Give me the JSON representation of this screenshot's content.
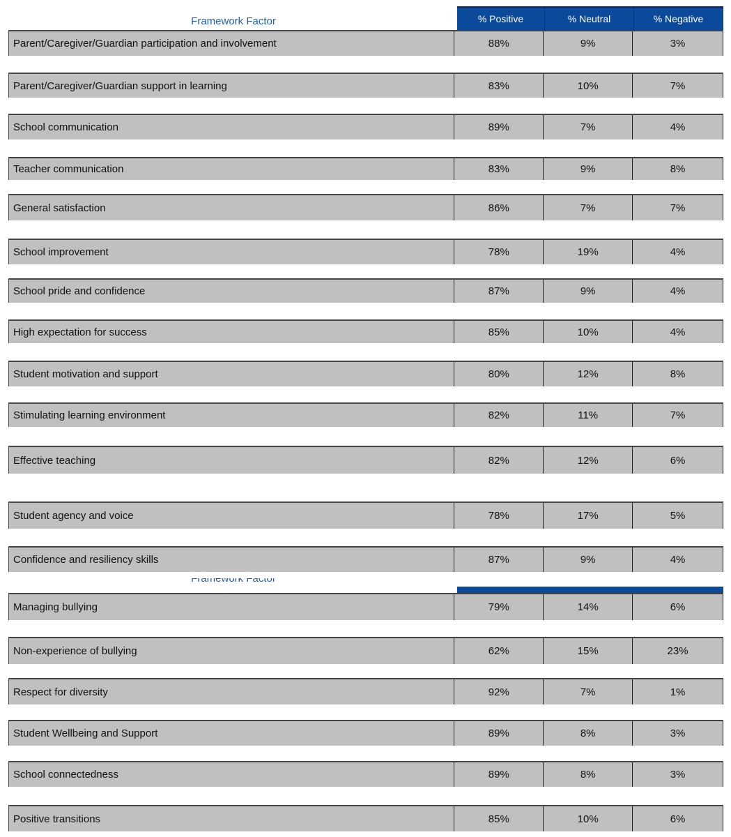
{
  "header": {
    "factor": "Framework Factor",
    "positive": "% Positive",
    "neutral": "% Neutral",
    "negative": "% Negative"
  },
  "rows": [
    {
      "factor": "Parent/Caregiver/Guardian participation and involvement",
      "positive": "88%",
      "neutral": "9%",
      "negative": "3%"
    },
    {
      "factor": "Parent/Caregiver/Guardian support in learning",
      "positive": "83%",
      "neutral": "10%",
      "negative": "7%"
    },
    {
      "factor": "School communication",
      "positive": "89%",
      "neutral": "7%",
      "negative": "4%"
    },
    {
      "factor": "Teacher communication",
      "positive": "83%",
      "neutral": "9%",
      "negative": "8%"
    },
    {
      "factor": "General satisfaction",
      "positive": "86%",
      "neutral": "7%",
      "negative": "7%"
    },
    {
      "factor": "School improvement",
      "positive": "78%",
      "neutral": "19%",
      "negative": "4%"
    },
    {
      "factor": "School pride and confidence",
      "positive": "87%",
      "neutral": "9%",
      "negative": "4%"
    },
    {
      "factor": "High expectation for success",
      "positive": "85%",
      "neutral": "10%",
      "negative": "4%"
    },
    {
      "factor": "Student motivation and support",
      "positive": "80%",
      "neutral": "12%",
      "negative": "8%"
    },
    {
      "factor": "Stimulating learning environment",
      "positive": "82%",
      "neutral": "11%",
      "negative": "7%"
    },
    {
      "factor": "Effective teaching",
      "positive": "82%",
      "neutral": "12%",
      "negative": "6%"
    },
    {
      "factor": "Student agency and voice",
      "positive": "78%",
      "neutral": "17%",
      "negative": "5%"
    },
    {
      "factor": "Confidence and resiliency skills",
      "positive": "87%",
      "neutral": "9%",
      "negative": "4%"
    },
    {
      "factor": "Managing bullying",
      "positive": "79%",
      "neutral": "14%",
      "negative": "6%"
    },
    {
      "factor": "Non-experience of bullying",
      "positive": "62%",
      "neutral": "15%",
      "negative": "23%"
    },
    {
      "factor": "Respect for diversity",
      "positive": "92%",
      "neutral": "7%",
      "negative": "1%"
    },
    {
      "factor": "Student Wellbeing and Support",
      "positive": "89%",
      "neutral": "8%",
      "negative": "3%"
    },
    {
      "factor": "School connectedness",
      "positive": "89%",
      "neutral": "8%",
      "negative": "3%"
    },
    {
      "factor": "Positive transitions",
      "positive": "85%",
      "neutral": "10%",
      "negative": "6%"
    }
  ]
}
